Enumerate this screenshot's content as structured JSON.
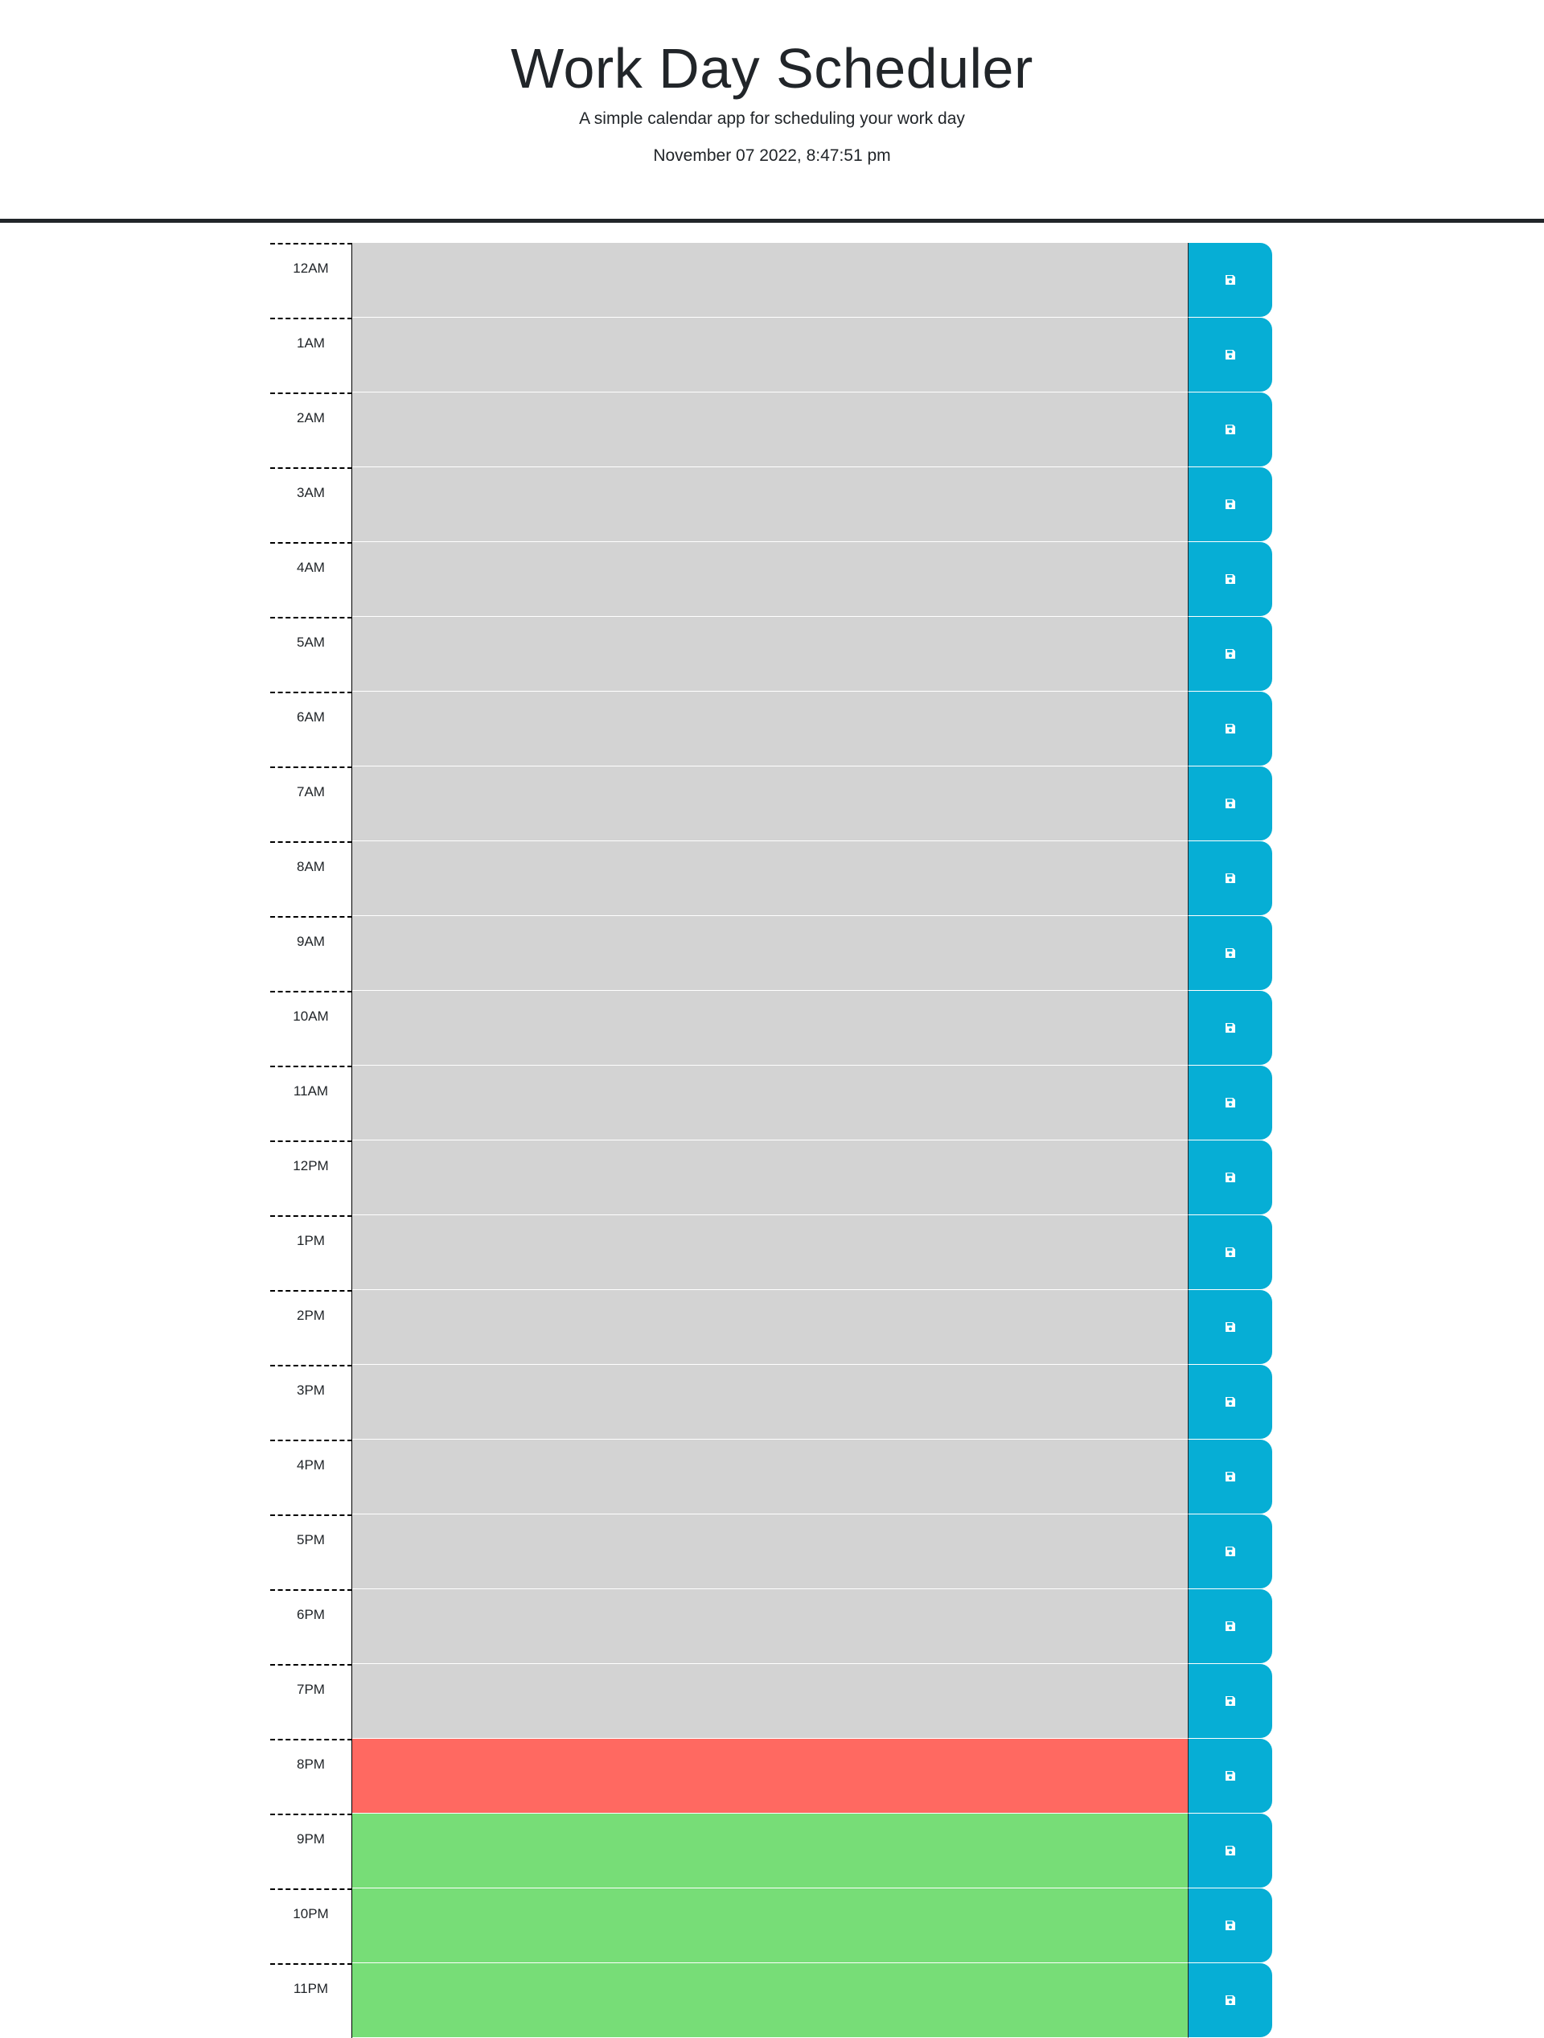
{
  "header": {
    "title": "Work Day Scheduler",
    "subtitle": "A simple calendar app for scheduling your work day",
    "current_day": "November 07 2022, 8:47:51 pm"
  },
  "colors": {
    "past": "#d3d3d3",
    "present": "#ff6961",
    "future": "#77dd77",
    "save_button": "#06aed5"
  },
  "time_blocks": [
    {
      "hour": "12AM",
      "text": "",
      "status": "past",
      "icon": "save-icon"
    },
    {
      "hour": "1AM",
      "text": "",
      "status": "past",
      "icon": "save-icon"
    },
    {
      "hour": "2AM",
      "text": "",
      "status": "past",
      "icon": "save-icon"
    },
    {
      "hour": "3AM",
      "text": "",
      "status": "past",
      "icon": "save-icon"
    },
    {
      "hour": "4AM",
      "text": "",
      "status": "past",
      "icon": "save-icon"
    },
    {
      "hour": "5AM",
      "text": "",
      "status": "past",
      "icon": "save-icon"
    },
    {
      "hour": "6AM",
      "text": "",
      "status": "past",
      "icon": "save-icon"
    },
    {
      "hour": "7AM",
      "text": "",
      "status": "past",
      "icon": "save-icon"
    },
    {
      "hour": "8AM",
      "text": "",
      "status": "past",
      "icon": "save-icon"
    },
    {
      "hour": "9AM",
      "text": "",
      "status": "past",
      "icon": "save-icon"
    },
    {
      "hour": "10AM",
      "text": "",
      "status": "past",
      "icon": "save-icon"
    },
    {
      "hour": "11AM",
      "text": "",
      "status": "past",
      "icon": "save-icon"
    },
    {
      "hour": "12PM",
      "text": "",
      "status": "past",
      "icon": "save-icon"
    },
    {
      "hour": "1PM",
      "text": "",
      "status": "past",
      "icon": "save-icon"
    },
    {
      "hour": "2PM",
      "text": "",
      "status": "past",
      "icon": "save-icon"
    },
    {
      "hour": "3PM",
      "text": "",
      "status": "past",
      "icon": "save-icon"
    },
    {
      "hour": "4PM",
      "text": "",
      "status": "past",
      "icon": "save-icon"
    },
    {
      "hour": "5PM",
      "text": "",
      "status": "past",
      "icon": "save-icon"
    },
    {
      "hour": "6PM",
      "text": "",
      "status": "past",
      "icon": "save-icon"
    },
    {
      "hour": "7PM",
      "text": "",
      "status": "past",
      "icon": "save-icon"
    },
    {
      "hour": "8PM",
      "text": "",
      "status": "present",
      "icon": "save-icon"
    },
    {
      "hour": "9PM",
      "text": "",
      "status": "future",
      "icon": "save-icon"
    },
    {
      "hour": "10PM",
      "text": "",
      "status": "future",
      "icon": "save-icon"
    },
    {
      "hour": "11PM",
      "text": "",
      "status": "future",
      "icon": "save-icon"
    }
  ]
}
